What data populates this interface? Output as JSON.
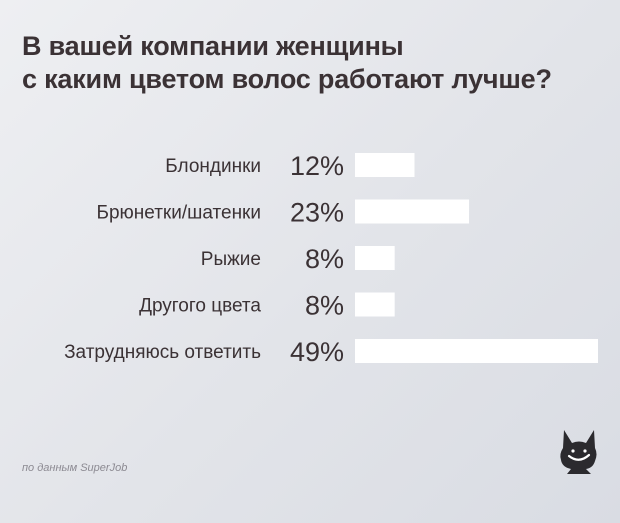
{
  "title_lines": [
    "В вашей компании женщины",
    "с каким цветом волос работают лучше?"
  ],
  "source_text": "по данным SuperJob",
  "chart_data": {
    "type": "bar",
    "orientation": "horizontal",
    "categories": [
      "Блондинки",
      "Брюнетки/шатенки",
      "Рыжие",
      "Другого цвета",
      "Затрудняюсь ответить"
    ],
    "values": [
      12,
      23,
      8,
      8,
      49
    ],
    "value_labels": [
      "12%",
      "23%",
      "8%",
      "8%",
      "49%"
    ],
    "xlim": [
      0,
      49
    ],
    "grid": false,
    "legend": "none"
  },
  "colors": {
    "bar": "#ffffff",
    "text": "#3b3235",
    "logo": "#2b2a2e"
  },
  "logo_icon": "superjob-dog-logo"
}
